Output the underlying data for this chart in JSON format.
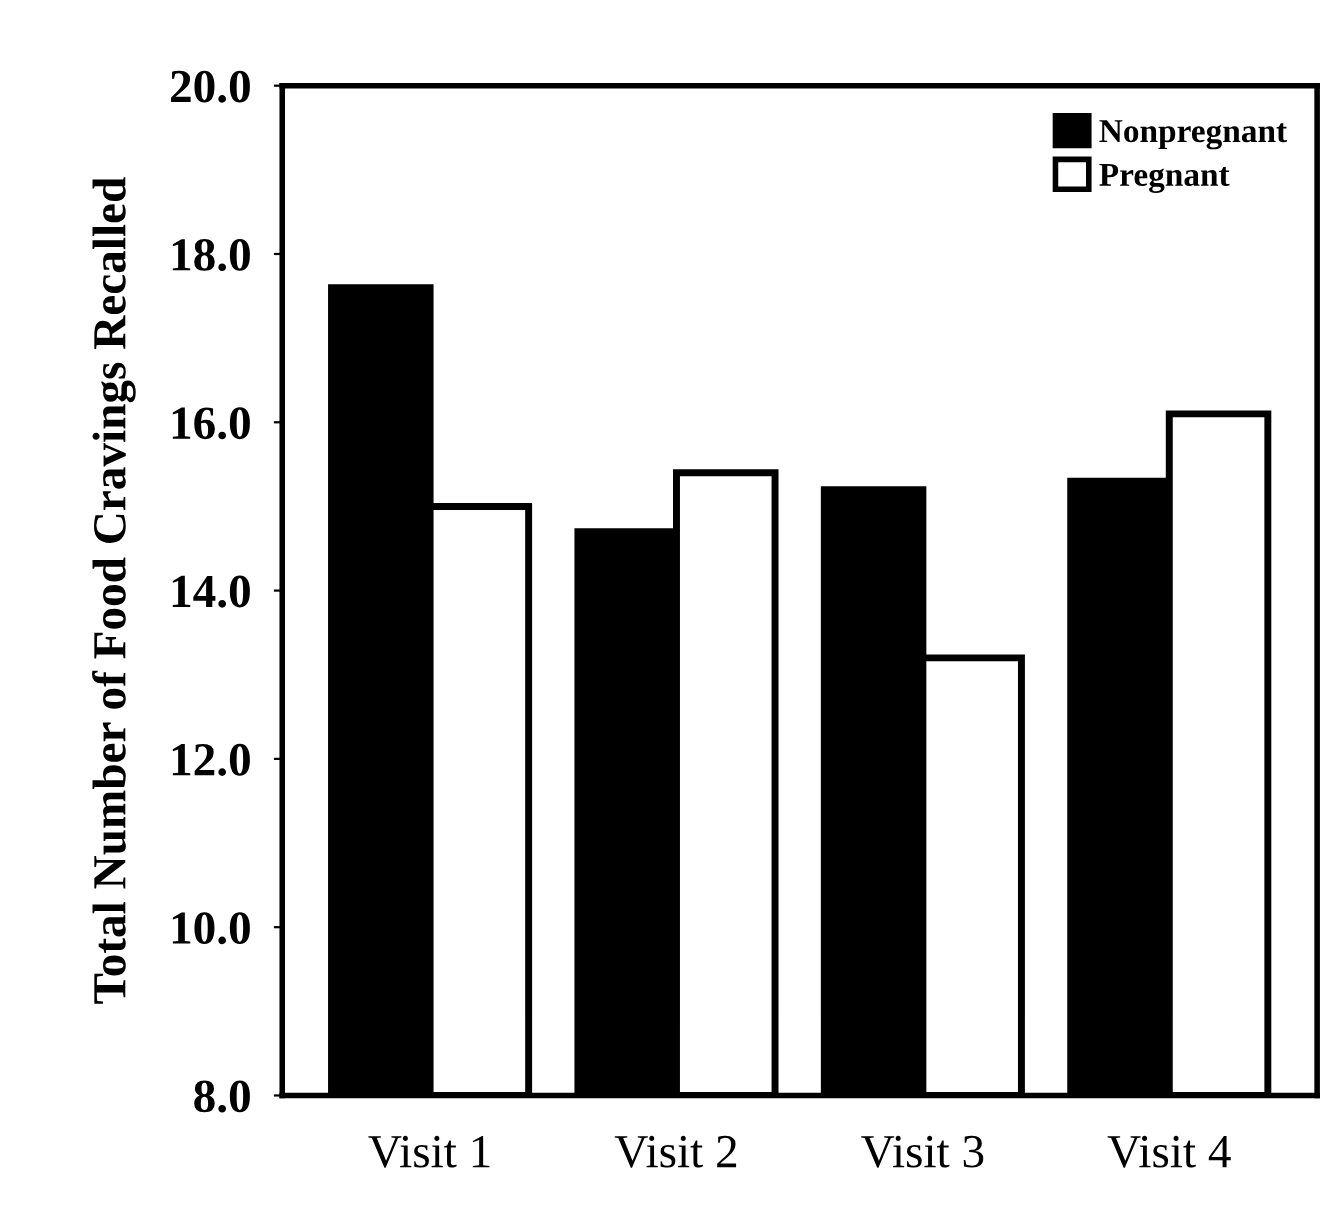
{
  "chart_data": {
    "type": "bar",
    "ylabel": "Total Number of Food Cravings Recalled",
    "categories": [
      "Visit 1",
      "Visit 2",
      "Visit 3",
      "Visit 4"
    ],
    "series": [
      {
        "name": "Nonpregnant",
        "color": "#000000",
        "values": [
          17.6,
          14.7,
          15.2,
          15.3
        ]
      },
      {
        "name": "Pregnant",
        "color": "#ffffff",
        "values": [
          15.0,
          15.4,
          13.2,
          16.1
        ]
      }
    ],
    "ylim": [
      8.0,
      20.0
    ],
    "yticks": [
      {
        "value": 8,
        "label": "8.0"
      },
      {
        "value": 10,
        "label": "10.0"
      },
      {
        "value": 12,
        "label": "12.0"
      },
      {
        "value": 14,
        "label": "14.0"
      },
      {
        "value": 16,
        "label": "16.0"
      },
      {
        "value": 18,
        "label": "18.0"
      },
      {
        "value": 20,
        "label": "20.0"
      }
    ],
    "legend": "top right",
    "grid": false
  }
}
